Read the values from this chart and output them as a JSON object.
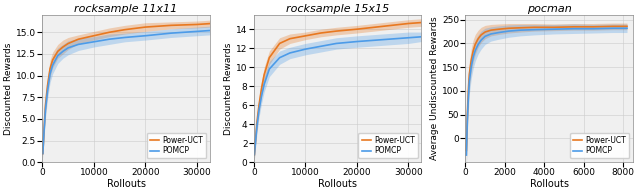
{
  "plots": [
    {
      "title": "rocksample 11x11",
      "title_style": "italic",
      "xlabel": "Rollouts",
      "ylabel": "Discounted Rewards",
      "xlim": [
        0,
        32500
      ],
      "ylim": [
        0,
        17
      ],
      "xticks": [
        0,
        10000,
        20000,
        30000
      ],
      "yticks": [
        0.0,
        2.5,
        5.0,
        7.5,
        10.0,
        12.5,
        15.0
      ],
      "orange_x": [
        100,
        300,
        600,
        1000,
        1500,
        2000,
        3000,
        4000,
        5000,
        7000,
        10000,
        13000,
        16000,
        20000,
        25000,
        30000,
        32500
      ],
      "orange_mean": [
        1.0,
        3.5,
        6.5,
        8.8,
        10.8,
        11.8,
        12.8,
        13.3,
        13.7,
        14.2,
        14.6,
        15.0,
        15.3,
        15.6,
        15.8,
        15.9,
        16.0
      ],
      "orange_lo": [
        0.5,
        2.8,
        5.5,
        7.8,
        9.8,
        10.9,
        12.0,
        12.5,
        13.0,
        13.7,
        14.1,
        14.5,
        14.8,
        15.1,
        15.4,
        15.5,
        15.6
      ],
      "orange_hi": [
        1.5,
        4.2,
        7.5,
        9.8,
        11.8,
        12.7,
        13.6,
        14.1,
        14.4,
        14.7,
        15.1,
        15.5,
        15.8,
        16.1,
        16.2,
        16.3,
        16.4
      ],
      "blue_x": [
        100,
        300,
        600,
        1000,
        1500,
        2000,
        3000,
        4000,
        5000,
        7000,
        10000,
        13000,
        16000,
        20000,
        25000,
        30000,
        32500
      ],
      "blue_mean": [
        1.0,
        3.2,
        6.0,
        8.2,
        10.2,
        11.2,
        12.3,
        12.8,
        13.2,
        13.6,
        13.9,
        14.2,
        14.4,
        14.6,
        14.9,
        15.1,
        15.2
      ],
      "blue_lo": [
        0.5,
        2.5,
        5.0,
        7.2,
        9.2,
        10.2,
        11.4,
        12.0,
        12.4,
        12.9,
        13.3,
        13.6,
        13.9,
        14.1,
        14.4,
        14.6,
        14.7
      ],
      "blue_hi": [
        1.5,
        3.9,
        7.0,
        9.2,
        11.2,
        12.2,
        13.2,
        13.6,
        14.0,
        14.3,
        14.5,
        14.8,
        14.9,
        15.1,
        15.4,
        15.6,
        15.7
      ]
    },
    {
      "title": "rocksample 15x15",
      "title_style": "italic",
      "xlabel": "Rollouts",
      "ylabel": "Discounted Rewards",
      "xlim": [
        0,
        32500
      ],
      "ylim": [
        0,
        15.5
      ],
      "xticks": [
        0,
        10000,
        20000,
        30000
      ],
      "yticks": [
        0,
        2,
        4,
        6,
        8,
        10,
        12,
        14
      ],
      "orange_x": [
        100,
        300,
        600,
        1000,
        1500,
        2000,
        3000,
        5000,
        7000,
        10000,
        13000,
        16000,
        20000,
        25000,
        30000,
        32500
      ],
      "orange_mean": [
        0.8,
        2.2,
        4.2,
        6.0,
        7.8,
        9.2,
        11.0,
        12.5,
        13.0,
        13.3,
        13.6,
        13.8,
        14.0,
        14.3,
        14.6,
        14.7
      ],
      "orange_lo": [
        0.3,
        1.6,
        3.4,
        5.2,
        7.0,
        8.4,
        10.3,
        11.9,
        12.5,
        12.9,
        13.2,
        13.4,
        13.6,
        13.9,
        14.2,
        14.3
      ],
      "orange_hi": [
        1.3,
        2.8,
        5.0,
        6.8,
        8.6,
        10.0,
        11.7,
        13.1,
        13.5,
        13.7,
        14.0,
        14.2,
        14.4,
        14.7,
        15.0,
        15.1
      ],
      "blue_x": [
        100,
        300,
        600,
        1000,
        1500,
        2000,
        3000,
        5000,
        7000,
        10000,
        13000,
        16000,
        20000,
        25000,
        30000,
        32500
      ],
      "blue_mean": [
        0.8,
        2.0,
        3.8,
        5.5,
        7.0,
        8.2,
        9.8,
        11.0,
        11.5,
        11.9,
        12.2,
        12.5,
        12.7,
        12.9,
        13.1,
        13.2
      ],
      "blue_lo": [
        0.3,
        1.4,
        3.0,
        4.7,
        6.2,
        7.4,
        9.0,
        10.3,
        10.9,
        11.3,
        11.6,
        11.9,
        12.1,
        12.3,
        12.5,
        12.7
      ],
      "blue_hi": [
        1.3,
        2.6,
        4.6,
        6.3,
        7.8,
        9.0,
        10.6,
        11.7,
        12.1,
        12.5,
        12.8,
        13.1,
        13.3,
        13.5,
        13.7,
        13.7
      ]
    },
    {
      "title": "pocman",
      "title_style": "italic",
      "xlabel": "Rollouts",
      "ylabel": "Average Undiscounted Rewards",
      "xlim": [
        0,
        8500
      ],
      "ylim": [
        -50,
        260
      ],
      "xticks": [
        0,
        2000,
        4000,
        6000,
        8000
      ],
      "yticks": [
        0,
        50,
        100,
        150,
        200,
        250
      ],
      "orange_x": [
        50,
        100,
        150,
        200,
        300,
        400,
        500,
        650,
        800,
        1000,
        1300,
        1700,
        2200,
        2800,
        3500,
        4500,
        5500,
        6500,
        7500,
        8200
      ],
      "orange_mean": [
        -25,
        50,
        100,
        135,
        165,
        185,
        198,
        210,
        218,
        224,
        228,
        230,
        232,
        233,
        234,
        234,
        235,
        235,
        236,
        236
      ],
      "orange_lo": [
        -55,
        15,
        70,
        108,
        140,
        162,
        177,
        192,
        202,
        210,
        216,
        219,
        222,
        224,
        226,
        227,
        228,
        228,
        229,
        229
      ],
      "orange_hi": [
        5,
        85,
        130,
        162,
        190,
        208,
        219,
        228,
        234,
        238,
        240,
        241,
        242,
        242,
        242,
        241,
        242,
        242,
        243,
        243
      ],
      "blue_x": [
        50,
        100,
        150,
        200,
        300,
        400,
        500,
        650,
        800,
        1000,
        1300,
        1700,
        2200,
        2800,
        3500,
        4500,
        5500,
        6500,
        7500,
        8200
      ],
      "blue_mean": [
        -35,
        40,
        85,
        120,
        152,
        172,
        185,
        198,
        207,
        215,
        220,
        223,
        226,
        228,
        229,
        230,
        231,
        231,
        232,
        232
      ],
      "blue_lo": [
        -65,
        10,
        55,
        93,
        127,
        148,
        163,
        178,
        188,
        198,
        205,
        209,
        213,
        216,
        218,
        220,
        221,
        222,
        223,
        223
      ],
      "blue_hi": [
        -5,
        70,
        115,
        147,
        177,
        196,
        207,
        218,
        226,
        232,
        235,
        237,
        239,
        240,
        240,
        240,
        241,
        240,
        241,
        241
      ]
    }
  ],
  "orange_color": "#E87820",
  "blue_color": "#4C9BE8",
  "orange_fill_alpha": 0.3,
  "blue_fill_alpha": 0.3,
  "legend_labels": [
    "Power-UCT",
    "POMCP"
  ],
  "grid_color": "#cccccc",
  "bg_color": "#f0f0f0"
}
